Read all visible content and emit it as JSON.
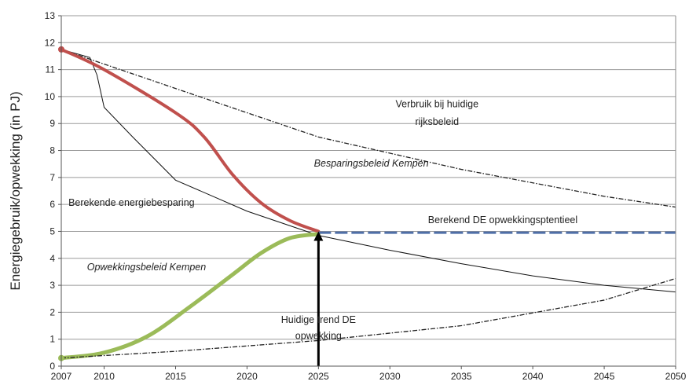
{
  "chart_data": {
    "type": "line",
    "title": "",
    "xlabel": "",
    "ylabel": "Energiegebruik/opwekking (in PJ)",
    "xlim": [
      2007,
      2050
    ],
    "ylim": [
      0,
      13
    ],
    "x_ticks": [
      "2007",
      "2010",
      "2015",
      "2020",
      "2025",
      "2030",
      "2035",
      "2040",
      "2045",
      "2050"
    ],
    "y_ticks": [
      "0",
      "1",
      "2",
      "3",
      "4",
      "5",
      "6",
      "7",
      "8",
      "9",
      "10",
      "11",
      "12",
      "13"
    ],
    "grid": "horizontal",
    "colors": {
      "besparing": "#c0504d",
      "opwekking": "#9bbb59",
      "potentieel": "#4f6fa8",
      "thin": "#111111"
    },
    "series": [
      {
        "key": "verbruik",
        "style": "dash-dot",
        "points": [
          [
            2007,
            11.75
          ],
          [
            2015,
            10.3
          ],
          [
            2025,
            8.5
          ],
          [
            2035,
            7.3
          ],
          [
            2045,
            6.3
          ],
          [
            2050,
            5.9
          ]
        ]
      },
      {
        "key": "berekende_besparing",
        "style": "thin",
        "points": [
          [
            2007,
            11.75
          ],
          [
            2009,
            11.45
          ],
          [
            2009.5,
            10.8
          ],
          [
            2010,
            9.6
          ],
          [
            2012,
            8.5
          ],
          [
            2015,
            6.9
          ],
          [
            2020,
            5.75
          ],
          [
            2025,
            4.85
          ],
          [
            2030,
            4.3
          ],
          [
            2035,
            3.8
          ],
          [
            2040,
            3.35
          ],
          [
            2045,
            3.0
          ],
          [
            2050,
            2.75
          ]
        ]
      },
      {
        "key": "besparingsbeleid",
        "style": "thick-red",
        "points": [
          [
            2007,
            11.75
          ],
          [
            2010,
            11.0
          ],
          [
            2015,
            9.4
          ],
          [
            2017,
            8.5
          ],
          [
            2019,
            7.1
          ],
          [
            2021,
            6.05
          ],
          [
            2023,
            5.4
          ],
          [
            2025,
            5.0
          ]
        ]
      },
      {
        "key": "opwekkingsbeleid",
        "style": "thick-green",
        "points": [
          [
            2007,
            0.3
          ],
          [
            2010,
            0.5
          ],
          [
            2013,
            1.1
          ],
          [
            2016,
            2.2
          ],
          [
            2019,
            3.4
          ],
          [
            2021,
            4.2
          ],
          [
            2023,
            4.75
          ],
          [
            2025,
            4.9
          ]
        ]
      },
      {
        "key": "potentieel",
        "style": "dashed-blue",
        "points": [
          [
            2025,
            4.95
          ],
          [
            2050,
            4.95
          ]
        ]
      },
      {
        "key": "huidige_trend",
        "style": "dash-dot",
        "points": [
          [
            2007,
            0.3
          ],
          [
            2015,
            0.55
          ],
          [
            2025,
            0.95
          ],
          [
            2035,
            1.5
          ],
          [
            2045,
            2.45
          ],
          [
            2050,
            3.25
          ]
        ]
      }
    ],
    "arrow": {
      "x": 2025,
      "from": 0,
      "to": 5.0
    },
    "annotations": [
      {
        "key": "verbruik_l1",
        "text": "Verbruik bij huidige",
        "italic": false,
        "x": 2033.3,
        "y": 9.6,
        "anchor": "middle"
      },
      {
        "key": "verbruik_l2",
        "text": "rijksbeleid",
        "italic": false,
        "x": 2033.3,
        "y": 8.95,
        "anchor": "middle"
      },
      {
        "key": "besparingsbeleid",
        "text": "Besparingsbeleid Kempen",
        "italic": true,
        "x": 2028.7,
        "y": 7.4,
        "anchor": "middle"
      },
      {
        "key": "berekende_besparing",
        "text": "Berekende energiebesparing",
        "italic": false,
        "x": 2007.5,
        "y": 5.95,
        "anchor": "start"
      },
      {
        "key": "potentieel",
        "text": "Berekend DE opwekkingsptentieel",
        "italic": false,
        "x": 2037.9,
        "y": 5.3,
        "anchor": "middle"
      },
      {
        "key": "opwekkingsbeleid",
        "text": "Opwekkingsbeleid Kempen",
        "italic": true,
        "x": 2008.8,
        "y": 3.55,
        "anchor": "start"
      },
      {
        "key": "trend_l1",
        "text": "Huidige trend DE",
        "italic": false,
        "x": 2025.0,
        "y": 1.6,
        "anchor": "middle"
      },
      {
        "key": "trend_l2",
        "text": "opwekking",
        "italic": false,
        "x": 2025.0,
        "y": 1.0,
        "anchor": "middle"
      }
    ]
  }
}
